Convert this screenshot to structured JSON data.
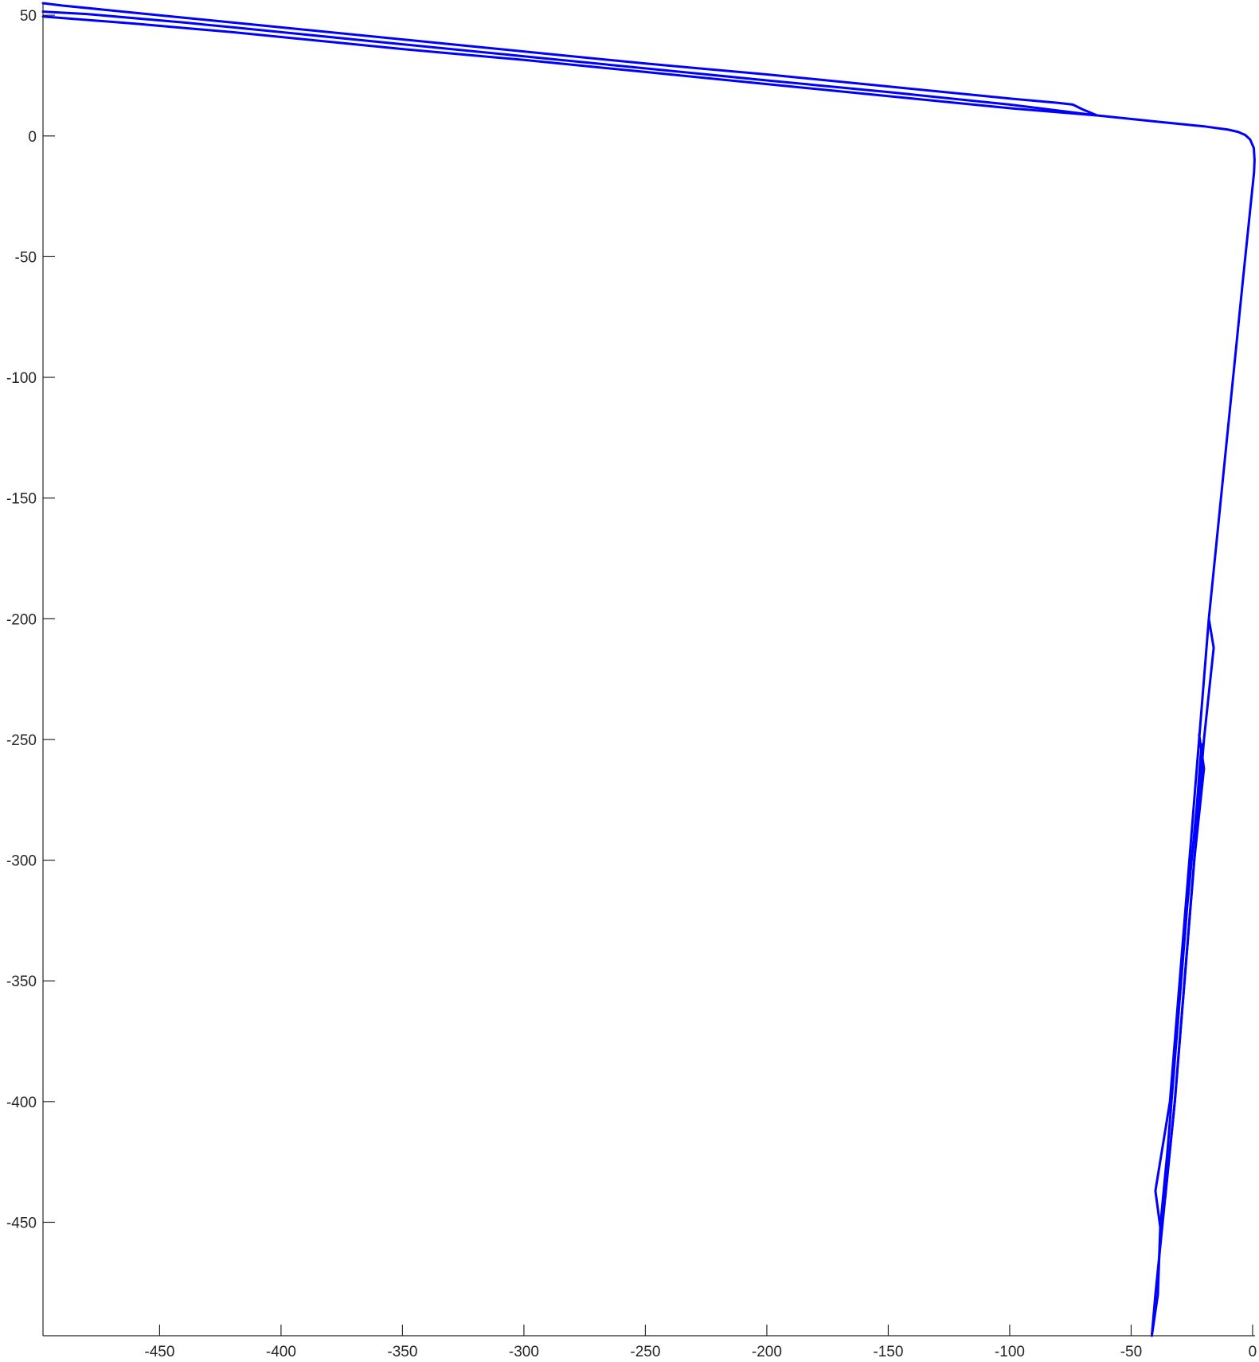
{
  "chart_data": {
    "type": "line",
    "title": "",
    "xlabel": "",
    "ylabel": "",
    "xlim": [
      -498,
      1
    ],
    "ylim": [
      -497,
      55
    ],
    "grid": false,
    "xticks": [
      -450,
      -400,
      -350,
      -300,
      -250,
      -200,
      -150,
      -100,
      -50,
      0
    ],
    "yticks": [
      50,
      0,
      -50,
      -100,
      -150,
      -200,
      -250,
      -300,
      -350,
      -400,
      -450
    ],
    "series": [
      {
        "color": "#0000ff",
        "line_width": 3,
        "points": [
          [
            -498,
            55
          ],
          [
            -490,
            54
          ],
          [
            -440,
            49
          ],
          [
            -420,
            47
          ],
          [
            -325,
            37.5
          ],
          [
            -290,
            34
          ],
          [
            -250,
            30
          ],
          [
            -200,
            25.5
          ],
          [
            -150,
            20.5
          ],
          [
            -100,
            15.5
          ],
          [
            -80,
            13.7
          ],
          [
            -74,
            13
          ],
          [
            -70,
            11
          ],
          [
            -64,
            8.5
          ],
          [
            -40,
            6
          ],
          [
            -20,
            4
          ],
          [
            -10,
            2.6
          ],
          [
            -6,
            1.7
          ],
          [
            -3,
            0.4
          ],
          [
            -1,
            -1.5
          ],
          [
            0.5,
            -5
          ],
          [
            0.8,
            -10
          ],
          [
            0.6,
            -15
          ],
          [
            -4,
            -60
          ],
          [
            -8,
            -100
          ],
          [
            -12,
            -140
          ],
          [
            -16,
            -180
          ],
          [
            -18,
            -200
          ],
          [
            -16,
            -212
          ],
          [
            -20,
            -250
          ],
          [
            -24,
            -300
          ],
          [
            -28,
            -350
          ],
          [
            -32,
            -400
          ],
          [
            -36,
            -440
          ],
          [
            -38,
            -460
          ],
          [
            -40,
            -480
          ],
          [
            -41.5,
            -497
          ]
        ]
      },
      {
        "color": "#0000ff",
        "line_width": 3,
        "points": [
          [
            -498,
            51.5
          ],
          [
            -480,
            50.5
          ],
          [
            -440,
            47
          ],
          [
            -420,
            45
          ],
          [
            -350,
            38
          ],
          [
            -300,
            33
          ],
          [
            -250,
            28
          ],
          [
            -200,
            23
          ],
          [
            -150,
            18.2
          ],
          [
            -100,
            13
          ],
          [
            -64,
            8.5
          ]
        ]
      },
      {
        "color": "#0000ff",
        "line_width": 3,
        "points": [
          [
            -498,
            49.5
          ],
          [
            -460,
            46.5
          ],
          [
            -420,
            43
          ],
          [
            -350,
            36
          ],
          [
            -300,
            31.5
          ],
          [
            -250,
            26.5
          ],
          [
            -200,
            21.5
          ],
          [
            -150,
            16.5
          ],
          [
            -100,
            11.5
          ],
          [
            -64,
            8.5
          ]
        ]
      },
      {
        "color": "#0000ff",
        "line_width": 3,
        "points": [
          [
            -18,
            -200
          ],
          [
            -22,
            -250
          ],
          [
            -26,
            -300
          ],
          [
            -30,
            -350
          ],
          [
            -34,
            -400
          ],
          [
            -40,
            -437
          ],
          [
            -38,
            -452
          ],
          [
            -39,
            -480
          ],
          [
            -41.5,
            -497
          ]
        ]
      },
      {
        "color": "#0000ff",
        "line_width": 3,
        "points": [
          [
            -22,
            -248
          ],
          [
            -20,
            -262
          ],
          [
            -24,
            -300
          ],
          [
            -28,
            -350
          ],
          [
            -32,
            -400
          ],
          [
            -36,
            -440
          ]
        ]
      },
      {
        "color": "#0000ff",
        "line_width": 3,
        "points": [
          [
            -21,
            -252
          ],
          [
            -23,
            -278
          ],
          [
            -27,
            -320
          ],
          [
            -31,
            -370
          ],
          [
            -35,
            -420
          ],
          [
            -38,
            -452
          ]
        ]
      }
    ]
  }
}
